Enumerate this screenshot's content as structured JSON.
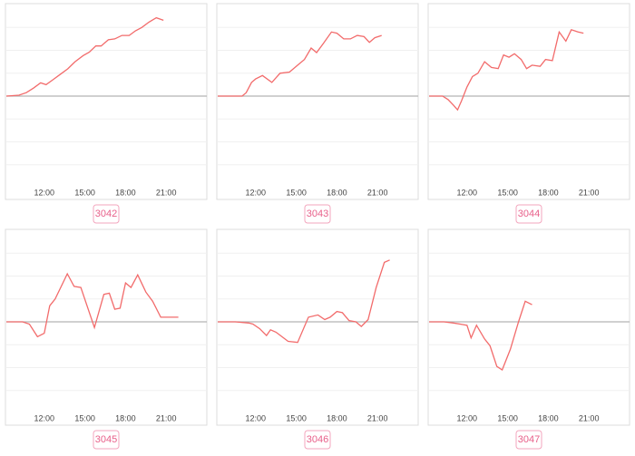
{
  "chart_data": [
    {
      "type": "line",
      "title": "3042",
      "color": "#f26b6b",
      "xlim": [
        9.2,
        24
      ],
      "ylim": [
        -4,
        4
      ],
      "yticks": [
        -3,
        -2,
        -1,
        0,
        1,
        2,
        3
      ],
      "grid": true,
      "xticks": [
        {
          "value": 12,
          "label": "12:00"
        },
        {
          "value": 15,
          "label": "15:00"
        },
        {
          "value": 18,
          "label": "18:00"
        },
        {
          "value": 21,
          "label": "21:00"
        }
      ],
      "x": [
        9.2,
        10.13,
        10.67,
        11.2,
        11.73,
        12.13,
        12.67,
        13.2,
        13.73,
        14.27,
        14.87,
        15.33,
        15.8,
        16.2,
        16.73,
        17.2,
        17.73,
        18.27,
        18.73,
        19.2,
        19.73,
        20.27,
        20.8
      ],
      "values": [
        0,
        0.04,
        0.15,
        0.35,
        0.58,
        0.5,
        0.73,
        0.96,
        1.19,
        1.5,
        1.77,
        1.92,
        2.19,
        2.19,
        2.46,
        2.5,
        2.65,
        2.65,
        2.85,
        3,
        3.23,
        3.42,
        3.31
      ]
    },
    {
      "type": "line",
      "title": "3043",
      "color": "#f26b6b",
      "xlim": [
        9.2,
        24
      ],
      "ylim": [
        -4,
        4
      ],
      "yticks": [
        -3,
        -2,
        -1,
        0,
        1,
        2,
        3
      ],
      "grid": true,
      "xticks": [
        {
          "value": 12,
          "label": "12:00"
        },
        {
          "value": 15,
          "label": "15:00"
        },
        {
          "value": 18,
          "label": "18:00"
        },
        {
          "value": 21,
          "label": "21:00"
        }
      ],
      "x": [
        9.2,
        11.0,
        11.3,
        11.7,
        12.0,
        12.5,
        13.2,
        13.8,
        14.5,
        15.2,
        15.6,
        16.1,
        16.5,
        17.0,
        17.6,
        18.0,
        18.5,
        19.0,
        19.5,
        20.0,
        20.4,
        20.8,
        21.3
      ],
      "values": [
        0,
        0,
        0.15,
        0.6,
        0.75,
        0.9,
        0.6,
        1.0,
        1.05,
        1.4,
        1.6,
        2.1,
        1.9,
        2.3,
        2.8,
        2.75,
        2.5,
        2.5,
        2.65,
        2.6,
        2.35,
        2.55,
        2.65
      ]
    },
    {
      "type": "line",
      "title": "3044",
      "color": "#f26b6b",
      "xlim": [
        9.2,
        24
      ],
      "ylim": [
        -4,
        4
      ],
      "yticks": [
        -3,
        -2,
        -1,
        0,
        1,
        2,
        3
      ],
      "grid": true,
      "xticks": [
        {
          "value": 12,
          "label": "12:00"
        },
        {
          "value": 15,
          "label": "15:00"
        },
        {
          "value": 18,
          "label": "18:00"
        },
        {
          "value": 21,
          "label": "21:00"
        }
      ],
      "x": [
        9.2,
        10.2,
        10.6,
        11.0,
        11.3,
        11.6,
        12.0,
        12.4,
        12.8,
        13.3,
        13.8,
        14.3,
        14.7,
        15.1,
        15.5,
        16.0,
        16.4,
        16.8,
        17.4,
        17.8,
        18.3,
        18.8,
        19.3,
        19.7,
        20.2,
        20.6
      ],
      "values": [
        0,
        0,
        -0.15,
        -0.4,
        -0.6,
        -0.2,
        0.4,
        0.85,
        1.0,
        1.5,
        1.25,
        1.2,
        1.8,
        1.7,
        1.85,
        1.6,
        1.2,
        1.35,
        1.3,
        1.6,
        1.55,
        2.8,
        2.4,
        2.9,
        2.8,
        2.75
      ]
    },
    {
      "type": "line",
      "title": "3045",
      "color": "#f26b6b",
      "xlim": [
        9.2,
        24
      ],
      "ylim": [
        -4,
        4
      ],
      "yticks": [
        -3,
        -2,
        -1,
        0,
        1,
        2,
        3
      ],
      "grid": true,
      "xticks": [
        {
          "value": 12,
          "label": "12:00"
        },
        {
          "value": 15,
          "label": "15:00"
        },
        {
          "value": 18,
          "label": "18:00"
        },
        {
          "value": 21,
          "label": "21:00"
        }
      ],
      "x": [
        9.2,
        10.4,
        10.9,
        11.5,
        12.0,
        12.4,
        12.8,
        13.7,
        14.2,
        14.7,
        15.7,
        16.4,
        16.8,
        17.2,
        17.6,
        18.0,
        18.4,
        18.9,
        19.5,
        20.0,
        20.6,
        21.9
      ],
      "values": [
        0,
        0,
        -0.1,
        -0.65,
        -0.5,
        0.7,
        1.0,
        2.1,
        1.55,
        1.5,
        -0.25,
        1.2,
        1.25,
        0.55,
        0.6,
        1.7,
        1.5,
        2.05,
        1.3,
        0.9,
        0.2,
        0.2
      ]
    },
    {
      "type": "line",
      "title": "3046",
      "color": "#f26b6b",
      "xlim": [
        9.2,
        24
      ],
      "ylim": [
        -4,
        4
      ],
      "yticks": [
        -3,
        -2,
        -1,
        0,
        1,
        2,
        3
      ],
      "grid": true,
      "xticks": [
        {
          "value": 12,
          "label": "12:00"
        },
        {
          "value": 15,
          "label": "15:00"
        },
        {
          "value": 18,
          "label": "18:00"
        },
        {
          "value": 21,
          "label": "21:00"
        }
      ],
      "x": [
        9.2,
        10.5,
        11.5,
        11.8,
        12.3,
        12.8,
        13.1,
        13.5,
        14.4,
        15.1,
        15.9,
        16.6,
        17.1,
        17.5,
        18.0,
        18.4,
        18.9,
        19.4,
        19.8,
        20.3,
        20.9,
        21.5,
        21.9
      ],
      "values": [
        0,
        0,
        -0.05,
        -0.1,
        -0.3,
        -0.6,
        -0.35,
        -0.45,
        -0.85,
        -0.9,
        0.2,
        0.3,
        0.1,
        0.2,
        0.45,
        0.4,
        0.05,
        0,
        -0.2,
        0.1,
        1.5,
        2.6,
        2.7
      ]
    },
    {
      "type": "line",
      "title": "3047",
      "color": "#f26b6b",
      "xlim": [
        9.2,
        24
      ],
      "ylim": [
        -4,
        4
      ],
      "yticks": [
        -3,
        -2,
        -1,
        0,
        1,
        2,
        3
      ],
      "grid": true,
      "xticks": [
        {
          "value": 12,
          "label": "12:00"
        },
        {
          "value": 15,
          "label": "15:00"
        },
        {
          "value": 18,
          "label": "18:00"
        },
        {
          "value": 21,
          "label": "21:00"
        }
      ],
      "x": [
        9.2,
        10.3,
        11.0,
        11.5,
        12.0,
        12.3,
        12.7,
        13.3,
        13.7,
        14.2,
        14.6,
        15.2,
        15.8,
        16.3,
        16.8
      ],
      "values": [
        0,
        0,
        -0.05,
        -0.1,
        -0.15,
        -0.7,
        -0.15,
        -0.75,
        -1.05,
        -1.95,
        -2.1,
        -1.2,
        0,
        0.9,
        0.75
      ]
    }
  ]
}
